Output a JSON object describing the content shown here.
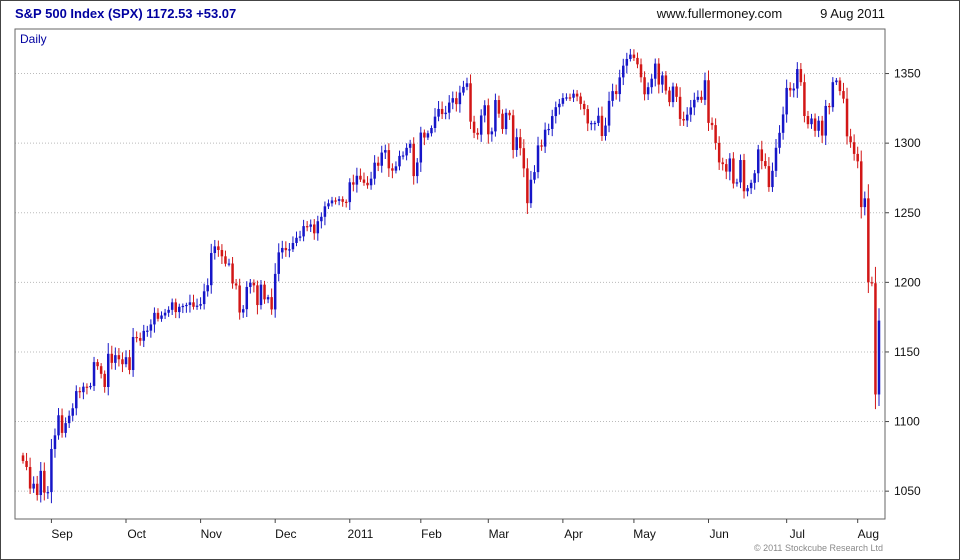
{
  "header": {
    "title": "S&P 500 Index (SPX) 1172.53 +53.07",
    "website": "www.fullermoney.com",
    "date": "9 Aug 2011"
  },
  "chart_label": "Daily",
  "footer": {
    "copyright": "© 2011 Stockcube Research Ltd"
  },
  "chart_data": {
    "type": "candlestick",
    "title": "S&P 500 Index (SPX) Daily",
    "last_price": 1172.53,
    "change": "+53.07",
    "ylim": [
      1030,
      1382
    ],
    "y_ticks": [
      1050,
      1100,
      1150,
      1200,
      1250,
      1300,
      1350
    ],
    "grid": "dotted-horizontal",
    "legend_position": "none",
    "colors": {
      "up": "#1616c8",
      "down": "#d21616",
      "grid": "#bbbbbb",
      "frame": "#666666",
      "axis_text": "#111111"
    },
    "months": [
      {
        "label": "",
        "closes": [
          1071.69,
          1067.36,
          1051.87,
          1055.33,
          1047.22,
          1064.59,
          1048.92,
          1049.33
        ]
      },
      {
        "label": "Sep",
        "closes": [
          1080.29,
          1090.1,
          1104.51,
          1091.84,
          1098.87,
          1104.18,
          1109.55,
          1121.9,
          1121.1,
          1125.07,
          1124.66,
          1125.59,
          1142.71,
          1139.78,
          1134.28,
          1124.83,
          1148.67,
          1142.16,
          1147.7,
          1144.73,
          1141.2
        ]
      },
      {
        "label": "Oct",
        "closes": [
          1146.24,
          1137.03,
          1160.75,
          1159.97,
          1158.06,
          1165.15,
          1165.32,
          1169.77,
          1178.1,
          1173.81,
          1176.19,
          1178.17,
          1180.26,
          1185.62,
          1178.64,
          1182.45,
          1183.08,
          1183.78,
          1185.64,
          1182.45,
          1183.26
        ]
      },
      {
        "label": "Nov",
        "closes": [
          1184.38,
          1193.57,
          1197.96,
          1221.06,
          1225.85,
          1223.25,
          1218.71,
          1213.4,
          1213.54,
          1199.21,
          1197.75,
          1178.34,
          1180.73,
          1196.69,
          1199.73,
          1197.84,
          1183.7,
          1198.35,
          1187.76,
          1189.4,
          1180.55
        ]
      },
      {
        "label": "Dec",
        "closes": [
          1206.07,
          1221.53,
          1224.71,
          1223.12,
          1223.75,
          1228.28,
          1232.01,
          1233.0,
          1240.4,
          1239.94,
          1241.59,
          1235.23,
          1243.91,
          1247.08,
          1254.6,
          1256.77,
          1258.84,
          1258.51,
          1259.78,
          1257.88,
          1257.64
        ]
      },
      {
        "label": "2011",
        "closes": [
          1271.87,
          1270.2,
          1276.56,
          1273.85,
          1271.5,
          1269.75,
          1274.48,
          1285.96,
          1283.76,
          1293.24,
          1295.02,
          1281.92,
          1280.26,
          1283.35,
          1290.84,
          1291.18,
          1296.63,
          1299.54,
          1276.34,
          1286.12
        ]
      },
      {
        "label": "Feb",
        "closes": [
          1307.59,
          1304.03,
          1307.1,
          1310.87,
          1319.05,
          1324.57,
          1320.88,
          1321.87,
          1329.15,
          1332.32,
          1328.01,
          1336.32,
          1340.43,
          1343.01,
          1315.44,
          1307.4,
          1306.1,
          1319.88,
          1327.22
        ]
      },
      {
        "label": "Mar",
        "closes": [
          1306.33,
          1308.44,
          1330.97,
          1321.15,
          1310.13,
          1321.82,
          1320.02,
          1295.11,
          1304.28,
          1296.39,
          1281.87,
          1256.88,
          1273.72,
          1279.2,
          1298.38,
          1297.54,
          1309.66,
          1310.19,
          1319.44,
          1325.83,
          1328.26
        ]
      },
      {
        "label": "Apr",
        "closes": [
          1332.41,
          1332.87,
          1332.63,
          1335.54,
          1333.51,
          1328.17,
          1324.46,
          1314.16,
          1314.41,
          1314.52,
          1319.68,
          1305.14,
          1312.62,
          1330.36,
          1337.38,
          1335.25,
          1347.24,
          1355.66,
          1360.48,
          1363.61
        ]
      },
      {
        "label": "May",
        "closes": [
          1361.22,
          1356.62,
          1347.32,
          1335.1,
          1340.2,
          1346.29,
          1357.16,
          1342.08,
          1348.65,
          1337.77,
          1329.47,
          1340.68,
          1333.27,
          1317.37,
          1316.28,
          1320.47,
          1325.69,
          1331.1,
          1333.27,
          1331.1,
          1345.2
        ]
      },
      {
        "label": "Jun",
        "closes": [
          1314.55,
          1312.94,
          1300.16,
          1286.17,
          1284.94,
          1279.56,
          1289.0,
          1270.98,
          1271.83,
          1287.87,
          1265.42,
          1267.64,
          1271.5,
          1278.36,
          1295.52,
          1287.14,
          1283.5,
          1268.45,
          1280.1,
          1296.67,
          1307.41,
          1320.64
        ]
      },
      {
        "label": "Jul",
        "closes": [
          1339.67,
          1337.88,
          1339.22,
          1353.22,
          1343.8,
          1319.49,
          1313.64,
          1317.72,
          1308.87,
          1316.14,
          1305.44,
          1326.73,
          1325.84,
          1343.8,
          1345.02,
          1337.43,
          1331.94,
          1304.89,
          1300.67,
          1292.28
        ]
      },
      {
        "label": "Aug",
        "closes": [
          1286.94,
          1254.05,
          1260.34,
          1200.07,
          1199.38,
          1119.46,
          1172.53
        ]
      }
    ]
  }
}
